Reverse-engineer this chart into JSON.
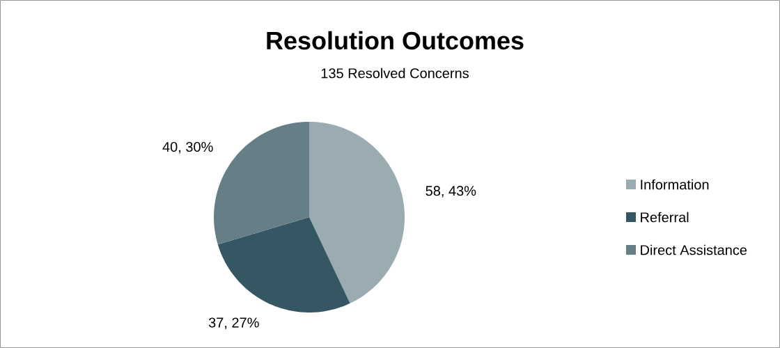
{
  "chart_data": {
    "type": "pie",
    "title": "Resolution Outcomes",
    "subtitle": "135 Resolved Concerns",
    "categories": [
      "Information",
      "Referral",
      "Direct Assistance"
    ],
    "values": [
      58,
      37,
      40
    ],
    "colors": [
      "#9aabb2",
      "#345763",
      "#667f87"
    ],
    "value_labels": [
      "58, 43%",
      "37, 27%",
      "40, 30%"
    ],
    "legend": "right"
  }
}
